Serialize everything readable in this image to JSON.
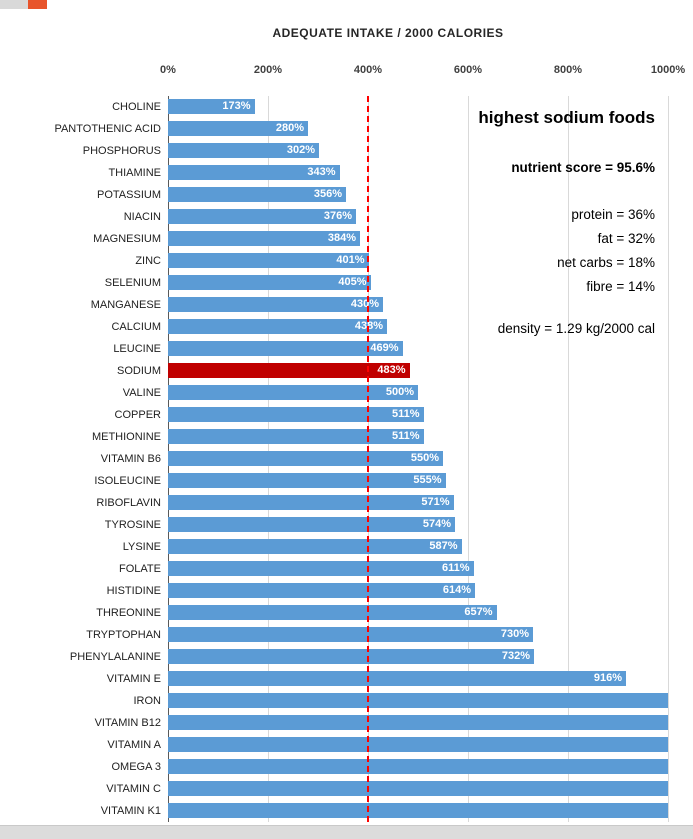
{
  "artifacts": {
    "top_left_gray_cell": "#D9D9D9",
    "top_left_orange_cell": "#E8542B",
    "bottom_row_fill": "#DCDCDC"
  },
  "chart_data": {
    "type": "bar",
    "orientation": "horizontal",
    "title": "ADEQUATE INTAKE / 2000 CALORIES",
    "xlabel": "",
    "ylabel": "",
    "xlim": [
      0,
      1000
    ],
    "grid": true,
    "x_axis_ticks": [
      {
        "label": "0%",
        "value": 0
      },
      {
        "label": "200%",
        "value": 200
      },
      {
        "label": "400%",
        "value": 400
      },
      {
        "label": "600%",
        "value": 600
      },
      {
        "label": "800%",
        "value": 800
      },
      {
        "label": "1000%",
        "value": 1000
      }
    ],
    "reference_line": {
      "value": 400,
      "color": "#FF0000",
      "style": "dashed"
    },
    "colors": {
      "bar": "#5B9BD5",
      "highlight": "#C00000",
      "value_label": "#FFFFFF",
      "gridline": "#D9D9D9",
      "axis_line": "#595959"
    },
    "highlight_category": "SODIUM",
    "items": [
      {
        "category": "CHOLINE",
        "value": 173,
        "label": "173%"
      },
      {
        "category": "PANTOTHENIC ACID",
        "value": 280,
        "label": "280%"
      },
      {
        "category": "PHOSPHORUS",
        "value": 302,
        "label": "302%"
      },
      {
        "category": "THIAMINE",
        "value": 343,
        "label": "343%"
      },
      {
        "category": "POTASSIUM",
        "value": 356,
        "label": "356%"
      },
      {
        "category": "NIACIN",
        "value": 376,
        "label": "376%"
      },
      {
        "category": "MAGNESIUM",
        "value": 384,
        "label": "384%"
      },
      {
        "category": "ZINC",
        "value": 401,
        "label": "401%"
      },
      {
        "category": "SELENIUM",
        "value": 405,
        "label": "405%"
      },
      {
        "category": "MANGANESE",
        "value": 430,
        "label": "430%"
      },
      {
        "category": "CALCIUM",
        "value": 438,
        "label": "438%"
      },
      {
        "category": "LEUCINE",
        "value": 469,
        "label": "469%"
      },
      {
        "category": "SODIUM",
        "value": 483,
        "label": "483%"
      },
      {
        "category": "VALINE",
        "value": 500,
        "label": "500%"
      },
      {
        "category": "COPPER",
        "value": 511,
        "label": "511%"
      },
      {
        "category": "METHIONINE",
        "value": 511,
        "label": "511%"
      },
      {
        "category": "VITAMIN B6",
        "value": 550,
        "label": "550%"
      },
      {
        "category": "ISOLEUCINE",
        "value": 555,
        "label": "555%"
      },
      {
        "category": "RIBOFLAVIN",
        "value": 571,
        "label": "571%"
      },
      {
        "category": "TYROSINE",
        "value": 574,
        "label": "574%"
      },
      {
        "category": "LYSINE",
        "value": 587,
        "label": "587%"
      },
      {
        "category": "FOLATE",
        "value": 611,
        "label": "611%"
      },
      {
        "category": "HISTIDINE",
        "value": 614,
        "label": "614%"
      },
      {
        "category": "THREONINE",
        "value": 657,
        "label": "657%"
      },
      {
        "category": "TRYPTOPHAN",
        "value": 730,
        "label": "730%"
      },
      {
        "category": "PHENYLALANINE",
        "value": 732,
        "label": "732%"
      },
      {
        "category": "VITAMIN E",
        "value": 916,
        "label": "916%"
      },
      {
        "category": "IRON",
        "value": 1000,
        "label": ""
      },
      {
        "category": "VITAMIN B12",
        "value": 1000,
        "label": ""
      },
      {
        "category": "VITAMIN A",
        "value": 1000,
        "label": ""
      },
      {
        "category": "OMEGA 3",
        "value": 1000,
        "label": ""
      },
      {
        "category": "VITAMIN C",
        "value": 1000,
        "label": ""
      },
      {
        "category": "VITAMIN K1",
        "value": 1000,
        "label": ""
      }
    ]
  },
  "annotations": {
    "heading": "highest sodium foods",
    "score": "nutrient score = 95.6%",
    "macros": [
      "protein = 36%",
      "fat = 32%",
      "net carbs = 18%",
      "fibre = 14%"
    ],
    "density": "density = 1.29 kg/2000 cal"
  }
}
